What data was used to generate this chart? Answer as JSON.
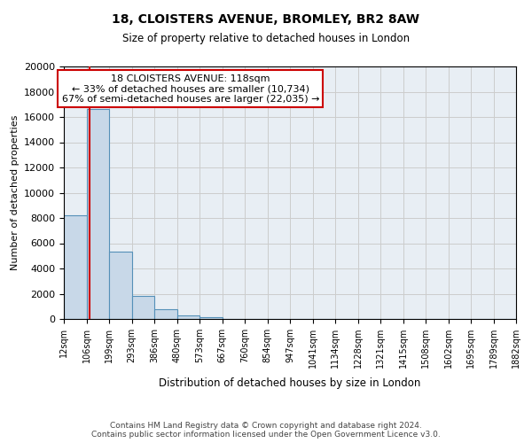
{
  "title": "18, CLOISTERS AVENUE, BROMLEY, BR2 8AW",
  "subtitle": "Size of property relative to detached houses in London",
  "xlabel": "Distribution of detached houses by size in London",
  "ylabel": "Number of detached properties",
  "bin_edges": [
    12,
    106,
    199,
    293,
    386,
    480,
    573,
    667,
    760,
    854,
    947,
    1041,
    1134,
    1228,
    1321,
    1415,
    1508,
    1602,
    1695,
    1789,
    1882
  ],
  "bin_counts": [
    8200,
    16600,
    5300,
    1850,
    750,
    300,
    150,
    0,
    0,
    0,
    0,
    0,
    0,
    0,
    0,
    0,
    0,
    0,
    0,
    0
  ],
  "bar_color": "#c8d8e8",
  "bar_edge_color": "#5590b8",
  "property_size": 118,
  "vline_color": "#cc0000",
  "annotation_title": "18 CLOISTERS AVENUE: 118sqm",
  "annotation_line1": "← 33% of detached houses are smaller (10,734)",
  "annotation_line2": "67% of semi-detached houses are larger (22,035) →",
  "annotation_box_color": "#ffffff",
  "annotation_box_edge": "#cc0000",
  "ylim": [
    0,
    20000
  ],
  "yticks": [
    0,
    2000,
    4000,
    6000,
    8000,
    10000,
    12000,
    14000,
    16000,
    18000,
    20000
  ],
  "footer_line1": "Contains HM Land Registry data © Crown copyright and database right 2024.",
  "footer_line2": "Contains public sector information licensed under the Open Government Licence v3.0.",
  "grid_color": "#cccccc",
  "background_color": "#e8eef4"
}
